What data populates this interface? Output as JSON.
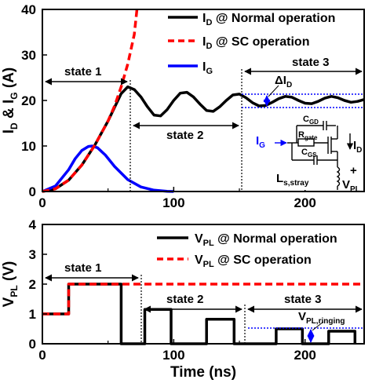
{
  "chart_data": [
    {
      "type": "line",
      "ylabel": "I_D & I_G (A)",
      "xlim": [
        0,
        245
      ],
      "ylim": [
        0,
        40
      ],
      "xticks": [
        0,
        100,
        200
      ],
      "yticks": [
        0,
        10,
        20,
        30,
        40
      ],
      "legend_position": "top-right",
      "series": [
        {
          "name": "I_D @ Normal operation",
          "color": "#000000",
          "dash": "solid",
          "x": [
            0,
            10,
            20,
            30,
            40,
            50,
            55,
            60,
            65,
            70,
            75,
            80,
            85,
            90,
            95,
            100,
            105,
            110,
            115,
            120,
            125,
            130,
            135,
            140,
            145,
            150,
            155,
            160,
            165,
            170,
            175,
            180,
            185,
            190,
            195,
            200,
            205,
            210,
            215,
            220,
            225,
            230,
            235,
            240,
            245
          ],
          "y": [
            0,
            0.6,
            2.5,
            5.8,
            10.2,
            15.5,
            18.5,
            21.5,
            23.0,
            22.4,
            20.8,
            18.6,
            16.8,
            16.6,
            18.0,
            20.0,
            21.6,
            21.8,
            20.8,
            19.2,
            17.8,
            17.6,
            18.6,
            20.0,
            21.2,
            21.4,
            20.6,
            19.5,
            18.8,
            18.9,
            19.6,
            20.4,
            20.9,
            20.7,
            20.0,
            19.4,
            19.3,
            19.8,
            20.5,
            20.9,
            20.6,
            20.0,
            19.6,
            19.8,
            20.2
          ]
        },
        {
          "name": "I_D @ SC operation",
          "color": "#ff0000",
          "dash": "dashed",
          "x": [
            0,
            10,
            20,
            30,
            40,
            50,
            55,
            60,
            65,
            70,
            72
          ],
          "y": [
            0,
            0.6,
            2.5,
            5.8,
            10.2,
            15.5,
            18.8,
            23.0,
            28.0,
            34.5,
            40.0
          ]
        },
        {
          "name": "I_G",
          "color": "#0000ff",
          "dash": "solid",
          "x": [
            0,
            10,
            20,
            25,
            30,
            35,
            38,
            42,
            48,
            55,
            65,
            75,
            85,
            95,
            100
          ],
          "y": [
            0,
            1.2,
            4.8,
            7.2,
            9.0,
            9.9,
            10.0,
            9.6,
            8.0,
            5.5,
            2.6,
            1.0,
            0.3,
            0.05,
            0
          ]
        }
      ],
      "annotations": {
        "state1": "state 1",
        "state2": "state 2",
        "state3": "state 3",
        "delta": "ΔI_D",
        "inset": {
          "cgd": "C_GD",
          "rgate": "R_gate",
          "cgs": "C_GS",
          "ig": "I_G",
          "id": "I_D",
          "ls": "L_s,stray",
          "plus": "+",
          "vpl": "V_PL"
        }
      }
    },
    {
      "type": "line",
      "xlabel": "Time (ns)",
      "ylabel": "V_PL (V)",
      "xlim": [
        0,
        245
      ],
      "ylim": [
        0,
        4
      ],
      "xticks": [
        0,
        100,
        200
      ],
      "yticks": [
        0,
        1,
        2,
        3,
        4
      ],
      "legend_position": "top-right",
      "series": [
        {
          "name": "V_PL @ Normal operation",
          "color": "#000000",
          "dash": "solid",
          "x": [
            0,
            20,
            20,
            60,
            60,
            78,
            78,
            98,
            98,
            125,
            125,
            146,
            146,
            178,
            178,
            198,
            198,
            218,
            218,
            238,
            238
          ],
          "y": [
            1,
            1,
            2,
            2,
            0,
            0,
            1.15,
            1.15,
            0,
            0,
            0.82,
            0.82,
            0,
            0,
            0.5,
            0.5,
            0,
            0,
            0.42,
            0.42,
            0
          ]
        },
        {
          "name": "V_PL @ SC operation",
          "color": "#ff0000",
          "dash": "dashed",
          "x": [
            0,
            20,
            20,
            245
          ],
          "y": [
            1,
            1,
            2,
            2
          ]
        }
      ],
      "annotations": {
        "state1": "state 1",
        "state2": "state 2",
        "state3": "state 3",
        "ringing": "V_PL,ringing"
      }
    }
  ]
}
